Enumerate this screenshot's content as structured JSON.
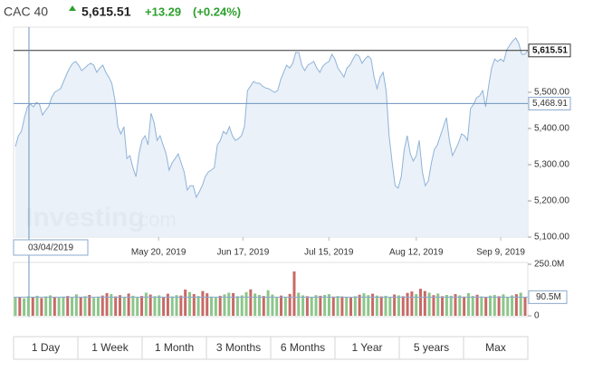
{
  "header": {
    "name": "CAC 40",
    "price": "5,615.51",
    "change": "+13.29",
    "change_pct": "(+0.24%)"
  },
  "chart_data": [
    {
      "type": "area",
      "color": "#8fb3d9",
      "fill": "#e6eef7",
      "values": [
        5350,
        5380,
        5392,
        5430,
        5460,
        5467,
        5460,
        5472,
        5467,
        5437,
        5450,
        5460,
        5485,
        5500,
        5505,
        5510,
        5530,
        5550,
        5567,
        5580,
        5585,
        5575,
        5560,
        5567,
        5575,
        5580,
        5575,
        5555,
        5567,
        5575,
        5555,
        5542,
        5525,
        5480,
        5405,
        5385,
        5405,
        5317,
        5325,
        5292,
        5267,
        5330,
        5367,
        5380,
        5355,
        5442,
        5417,
        5367,
        5380,
        5355,
        5330,
        5285,
        5305,
        5317,
        5330,
        5305,
        5280,
        5230,
        5242,
        5242,
        5210,
        5225,
        5242,
        5267,
        5280,
        5285,
        5292,
        5355,
        5367,
        5392,
        5385,
        5405,
        5380,
        5367,
        5372,
        5380,
        5405,
        5505,
        5517,
        5530,
        5525,
        5525,
        5517,
        5512,
        5510,
        5505,
        5500,
        5505,
        5535,
        5555,
        5575,
        5567,
        5580,
        5610,
        5610,
        5575,
        5560,
        5575,
        5580,
        5585,
        5567,
        5555,
        5572,
        5580,
        5585,
        5605,
        5592,
        5567,
        5555,
        5542,
        5567,
        5575,
        5592,
        5605,
        5600,
        5580,
        5592,
        5600,
        5592,
        5542,
        5510,
        5542,
        5555,
        5505,
        5380,
        5305,
        5242,
        5235,
        5267,
        5342,
        5380,
        5330,
        5310,
        5325,
        5367,
        5280,
        5242,
        5255,
        5305,
        5342,
        5355,
        5380,
        5405,
        5430,
        5367,
        5325,
        5342,
        5360,
        5385,
        5380,
        5367,
        5455,
        5467,
        5485,
        5490,
        5505,
        5460,
        5517,
        5567,
        5592,
        5585,
        5592,
        5585,
        5617,
        5630,
        5642,
        5650,
        5635,
        5605,
        5605,
        5615.51
      ],
      "xlim": [
        0,
        170
      ],
      "ylim": [
        5100,
        5680
      ],
      "xticks": [
        {
          "value": 47.5,
          "label": "May 20, 2019"
        },
        {
          "value": 75.5,
          "label": "Jun 17, 2019"
        },
        {
          "value": 104,
          "label": "Jul 15, 2019"
        },
        {
          "value": 133,
          "label": "Aug 12, 2019"
        },
        {
          "value": 161,
          "label": "Sep 9, 2019"
        }
      ],
      "yticks": [
        {
          "value": 5100,
          "label": "5,100.00"
        },
        {
          "value": 5200,
          "label": "5,200.00"
        },
        {
          "value": 5300,
          "label": "5,300.00"
        },
        {
          "value": 5400,
          "label": "5,400.00"
        },
        {
          "value": 5500,
          "label": "5,500.00"
        }
      ],
      "last": {
        "value": 5615.51,
        "label": "5,615.51"
      },
      "crosshair": {
        "x": 4.5,
        "value": 5468.91,
        "label": "5,468.91",
        "date": "03/04/2019"
      },
      "watermark": {
        "brand": "Investing",
        "suffix": ".com"
      }
    },
    {
      "type": "bar",
      "up_color": "#8cc68b",
      "down_color": "#c76a67",
      "values": [
        88000000.0,
        92000000.0,
        85000000.0,
        95000000.0,
        90000000.0,
        97000000.0,
        86000000.0,
        94000000.0,
        99000000.0,
        91000000.0,
        88000000.0,
        93000000.0,
        96000000.0,
        89000000.0,
        104000000.0,
        92000000.0,
        95000000.0,
        101000000.0,
        87000000.0,
        93000000.0,
        98000000.0,
        110000000.0,
        105000000.0,
        94000000.0,
        100000000.0,
        92000000.0,
        108000000.0,
        97000000.0,
        89000000.0,
        96000000.0,
        112000000.0,
        103000000.0,
        95000000.0,
        99000000.0,
        90000000.0,
        107000000.0,
        94000000.0,
        100000000.0,
        98000000.0,
        127000000.0,
        115000000.0,
        105000000.0,
        96000000.0,
        120000000.0,
        109000000.0,
        93000000.0,
        88000000.0,
        97000000.0,
        104000000.0,
        112000000.0,
        110000000.0,
        95000000.0,
        99000000.0,
        115000000.0,
        128000000.0,
        108000000.0,
        101000000.0,
        96000000.0,
        124000000.0,
        103000000.0,
        92000000.0,
        98000000.0,
        90000000.0,
        106000000.0,
        215000000.0,
        112000000.0,
        99000000.0,
        95000000.0,
        91000000.0,
        100000000.0,
        97000000.0,
        101000000.0,
        105000000.0,
        93000000.0,
        96000000.0,
        94000000.0,
        90000000.0,
        88000000.0,
        95000000.0,
        102000000.0,
        109000000.0,
        100000000.0,
        107000000.0,
        98000000.0,
        94000000.0,
        97000000.0,
        92000000.0,
        103000000.0,
        99000000.0,
        95000000.0,
        111000000.0,
        118000000.0,
        105000000.0,
        131000000.0,
        120000000.0,
        112000000.0,
        100000000.0,
        108000000.0,
        95000000.0,
        101000000.0,
        97000000.0,
        105000000.0,
        99000000.0,
        93000000.0,
        110000000.0,
        96000000.0,
        102000000.0,
        94000000.0,
        90000000.0,
        98000000.0,
        101000000.0,
        95000000.0,
        104000000.0,
        92000000.0,
        99000000.0,
        105000000.0,
        112000000.0,
        90500000.0
      ],
      "up": [
        true,
        false,
        true,
        true,
        false,
        true,
        false,
        true,
        true,
        false,
        true,
        true,
        false,
        true,
        true,
        false,
        true,
        false,
        true,
        true,
        false,
        false,
        true,
        false,
        false,
        true,
        false,
        true,
        true,
        false,
        true,
        false,
        true,
        true,
        false,
        false,
        true,
        true,
        false,
        false,
        true,
        false,
        true,
        false,
        false,
        true,
        true,
        false,
        true,
        true,
        false,
        true,
        true,
        true,
        false,
        true,
        true,
        false,
        true,
        true,
        true,
        false,
        true,
        false,
        false,
        true,
        true,
        false,
        true,
        true,
        false,
        true,
        true,
        false,
        true,
        false,
        true,
        false,
        true,
        false,
        true,
        true,
        false,
        true,
        false,
        true,
        true,
        false,
        true,
        false,
        false,
        false,
        true,
        false,
        false,
        true,
        false,
        true,
        false,
        true,
        true,
        false,
        true,
        false,
        true,
        true,
        false,
        true,
        false,
        true,
        true,
        false,
        true,
        true,
        true,
        false,
        true,
        false
      ],
      "ylim": [
        0,
        250000000
      ],
      "yticks": [
        0,
        {
          "value": 250000000,
          "label": "250.0M"
        }
      ],
      "last": {
        "value": 90500000,
        "label": "90.5M"
      }
    }
  ],
  "buttons": [
    "1 Day",
    "1 Week",
    "1 Month",
    "3 Months",
    "6 Months",
    "1 Year",
    "5 years",
    "Max"
  ]
}
